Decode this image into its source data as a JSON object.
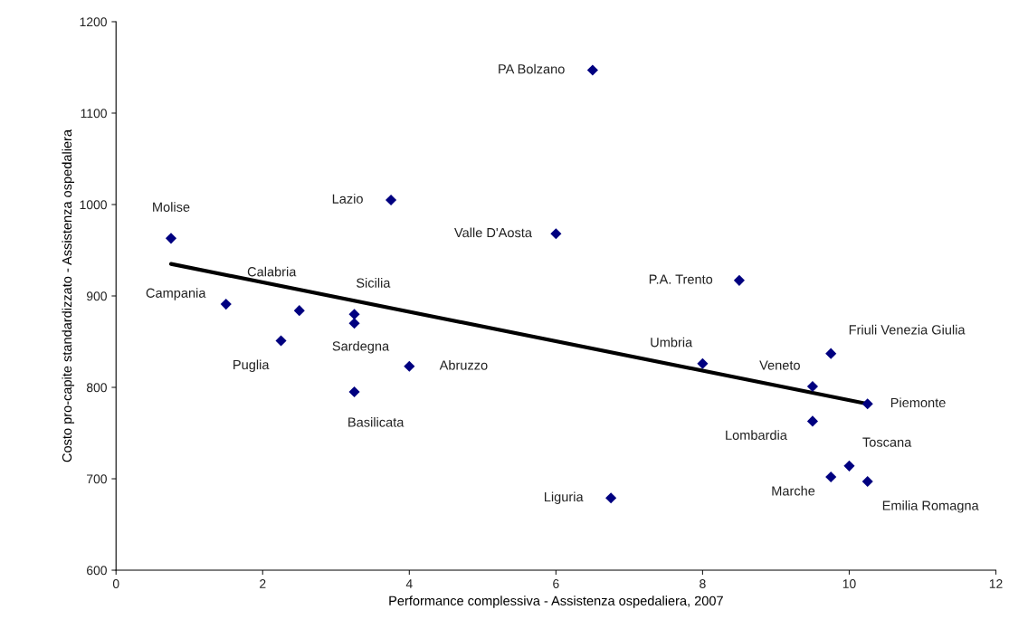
{
  "chart_data": {
    "type": "scatter",
    "xlabel": "Performance complessiva - Assistenza ospedaliera, 2007",
    "ylabel": "Costo pro-capite standardizzato - Assistenza ospedaliera",
    "xlim": [
      0,
      12
    ],
    "xticks": [
      0,
      2,
      4,
      6,
      8,
      10,
      12
    ],
    "ylim": [
      600,
      1200
    ],
    "yticks": [
      600,
      700,
      800,
      900,
      1000,
      1100,
      1200
    ],
    "grid": false,
    "series": [
      {
        "type": "scatter",
        "color": "#000080",
        "marker": "diamond",
        "x": [
          0.75,
          1.5,
          2.5,
          3.25,
          3.25,
          2.25,
          4.0,
          3.25,
          3.75,
          6.5,
          6.0,
          8.5,
          8.0,
          9.5,
          9.75,
          10.25,
          9.5,
          10.0,
          9.75,
          10.25,
          6.75
        ],
        "values": [
          963,
          891,
          884,
          880,
          870,
          851,
          823,
          795,
          1005,
          1147,
          968,
          917,
          826,
          801,
          837,
          782,
          763,
          714,
          702,
          697,
          679
        ]
      },
      {
        "type": "line",
        "color": "#000000",
        "marker": "none",
        "line_style": "solid",
        "x": [
          0.75,
          10.25
        ],
        "values": [
          935,
          782
        ]
      }
    ],
    "annotations": [
      {
        "text": "Molise",
        "x": 0.75,
        "y": 963
      },
      {
        "text": "Campania",
        "x": 1.5,
        "y": 891
      },
      {
        "text": "Calabria",
        "x": 2.5,
        "y": 884
      },
      {
        "text": "Sicilia",
        "x": 3.25,
        "y": 880
      },
      {
        "text": "Sardegna",
        "x": 3.25,
        "y": 870
      },
      {
        "text": "Puglia",
        "x": 2.25,
        "y": 851
      },
      {
        "text": "Abruzzo",
        "x": 4.0,
        "y": 823
      },
      {
        "text": "Basilicata",
        "x": 3.25,
        "y": 795
      },
      {
        "text": "Lazio",
        "x": 3.75,
        "y": 1005
      },
      {
        "text": "PA Bolzano",
        "x": 6.5,
        "y": 1147
      },
      {
        "text": "Valle D'Aosta",
        "x": 6.0,
        "y": 968
      },
      {
        "text": "P.A. Trento",
        "x": 8.5,
        "y": 917
      },
      {
        "text": "Umbria",
        "x": 8.0,
        "y": 826
      },
      {
        "text": "Veneto",
        "x": 9.5,
        "y": 801
      },
      {
        "text": "Friuli Venezia Giulia",
        "x": 9.75,
        "y": 837
      },
      {
        "text": "Piemonte",
        "x": 10.25,
        "y": 782
      },
      {
        "text": "Lombardia",
        "x": 9.5,
        "y": 763
      },
      {
        "text": "Toscana",
        "x": 10.0,
        "y": 714
      },
      {
        "text": "Marche",
        "x": 9.75,
        "y": 702
      },
      {
        "text": "Emilia Romagna",
        "x": 10.25,
        "y": 697
      },
      {
        "text": "Liguria",
        "x": 6.75,
        "y": 679
      }
    ]
  }
}
